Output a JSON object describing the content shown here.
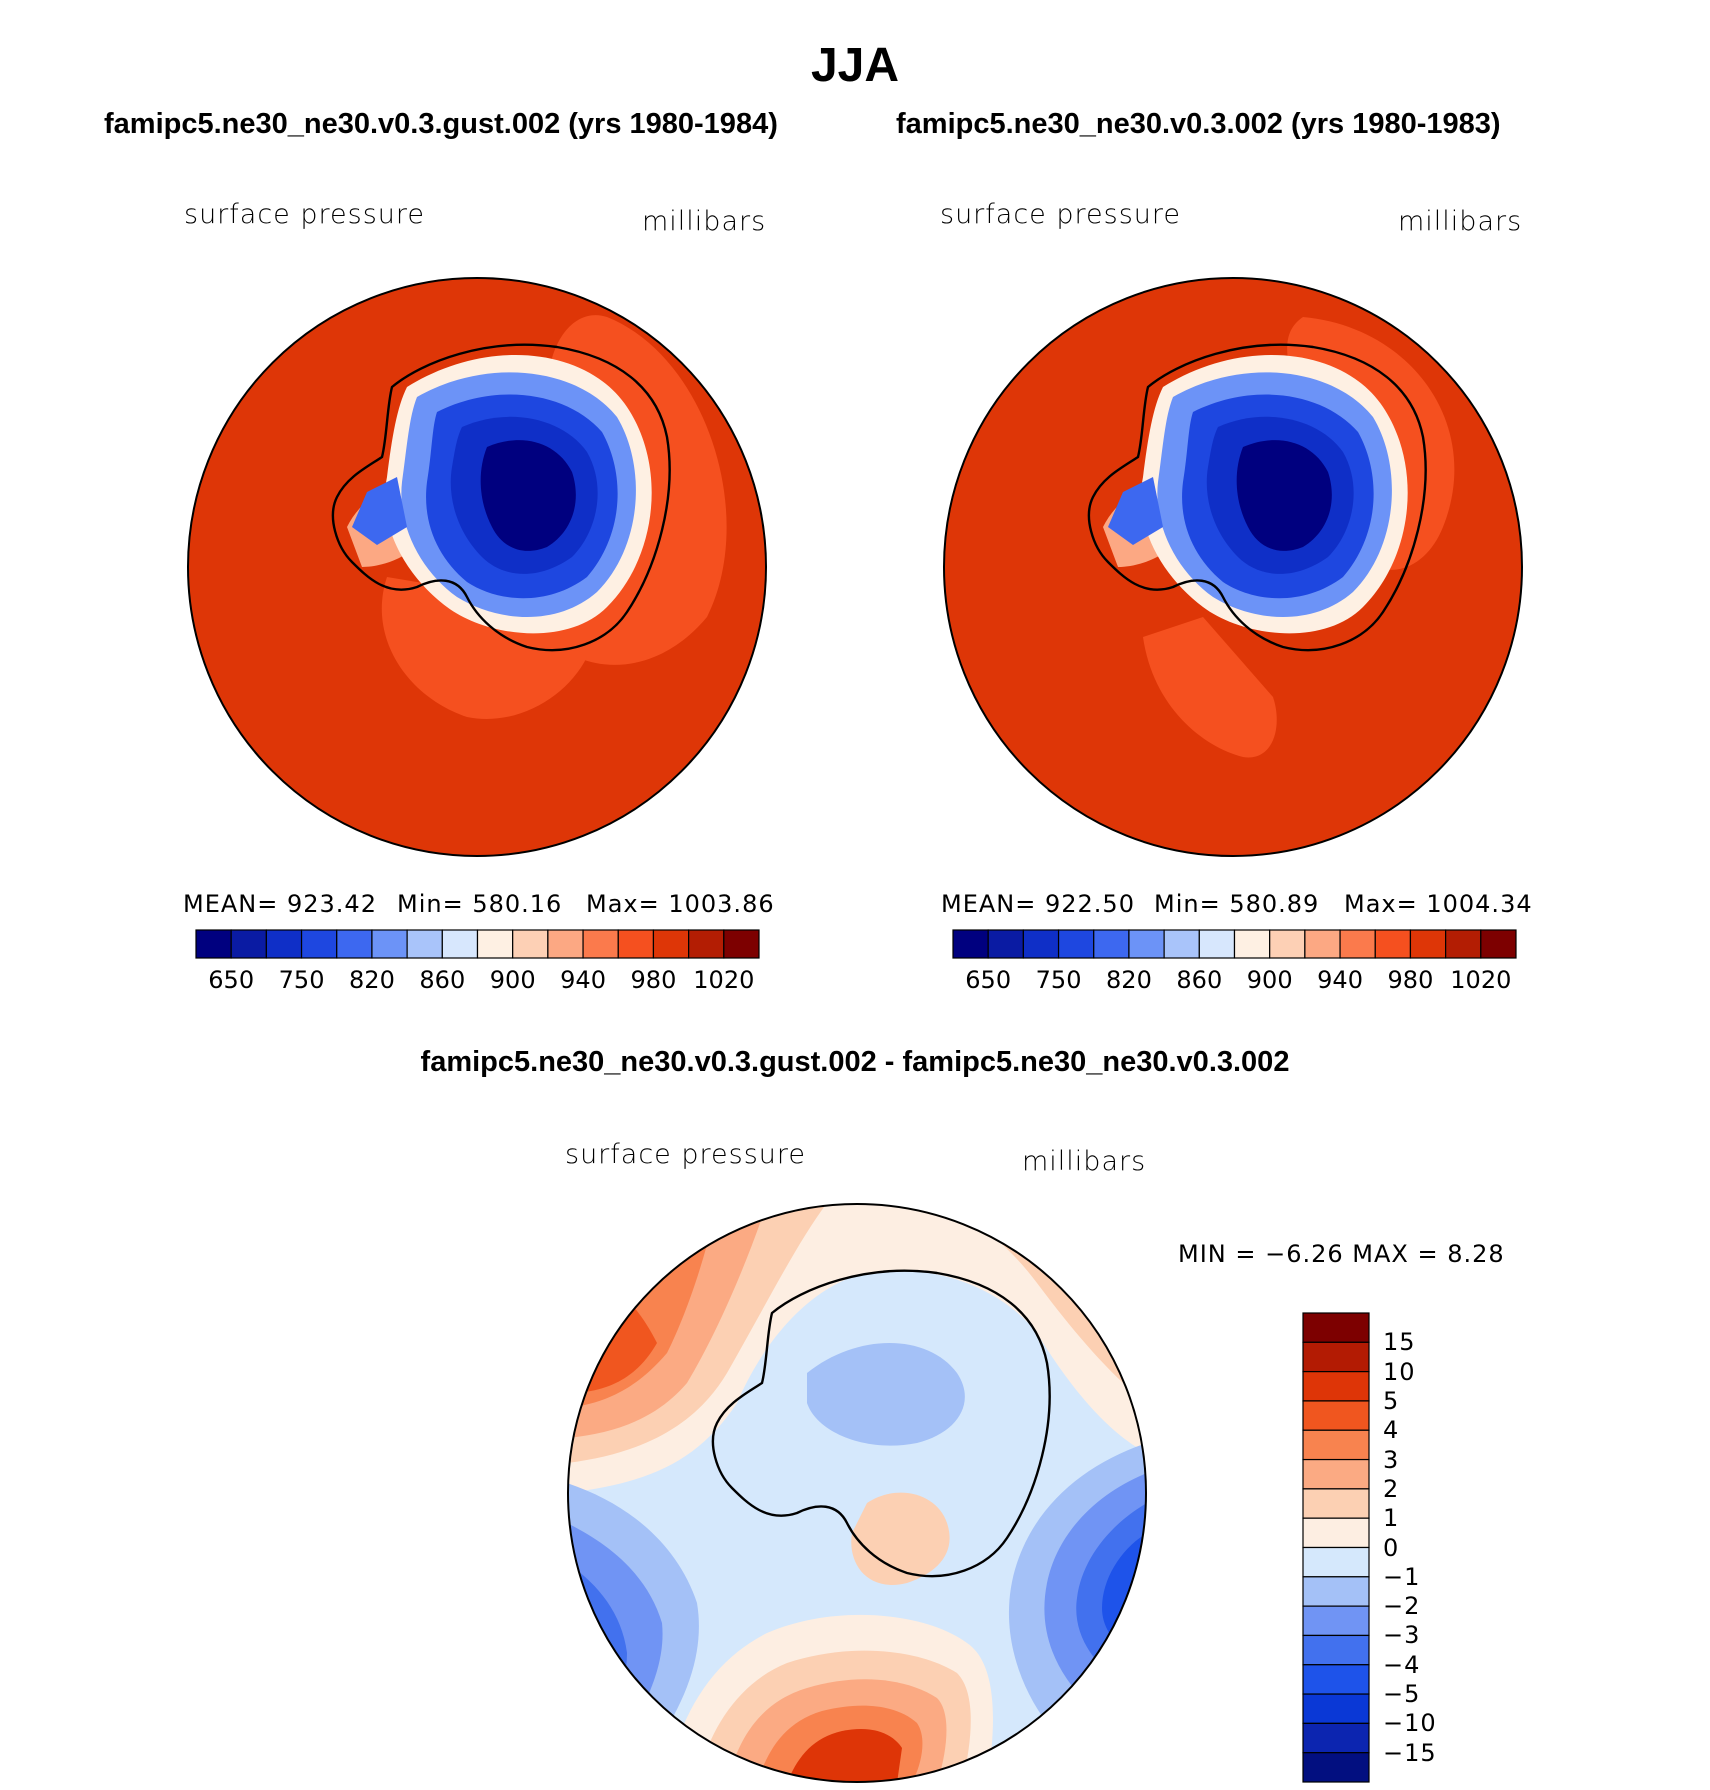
{
  "title": "JJA",
  "panels": [
    {
      "case": "famipc5.ne30_ne30.v0.3.gust.002 (yrs 1980-1984)",
      "variable": "surface pressure",
      "units": "millibars",
      "mean": "MEAN=  923.42",
      "min": "Min=  580.16",
      "max": "Max=  1003.86"
    },
    {
      "case": "famipc5.ne30_ne30.v0.3.002 (yrs 1980-1983)",
      "variable": "surface pressure",
      "units": "millibars",
      "mean": "MEAN=  922.50",
      "min": "Min=  580.89",
      "max": "Max=  1004.34"
    }
  ],
  "difference": {
    "title": "famipc5.ne30_ne30.v0.3.gust.002 - famipc5.ne30_ne30.v0.3.002",
    "variable": "surface pressure",
    "units": "millibars",
    "minmax": "MIN =   −6.26 MAX =    8.28"
  },
  "colorbar": {
    "colors": [
      "#00007f",
      "#0a1ba3",
      "#0f2fc7",
      "#1e47e0",
      "#3d68f0",
      "#6c93f7",
      "#a9c4fa",
      "#d7e7fd",
      "#fef0e3",
      "#fdd0b5",
      "#fca883",
      "#fb7a4c",
      "#f5501f",
      "#de3607",
      "#b31d03",
      "#7d0000"
    ],
    "tick_labels": [
      "650",
      "750",
      "820",
      "860",
      "900",
      "940",
      "980",
      "1020"
    ]
  },
  "diff_colorbar": {
    "colors": [
      "#020f80",
      "#0c25b0",
      "#0a38d6",
      "#1e53ea",
      "#4271ee",
      "#7094f4",
      "#a4c1f7",
      "#d5e8fc",
      "#fdeee2",
      "#fcd0b3",
      "#fbaa83",
      "#f8834f",
      "#f0561f",
      "#de3507",
      "#b31b03",
      "#7d0000"
    ],
    "labels": [
      "15",
      "10",
      "5",
      "4",
      "3",
      "2",
      "1",
      "0",
      "−1",
      "−2",
      "−3",
      "−4",
      "−5",
      "−10",
      "−15"
    ]
  },
  "icons": {
    "map_panels": "south-polar-stereographic-map"
  }
}
